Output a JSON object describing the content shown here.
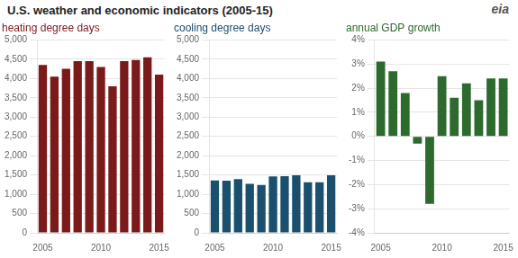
{
  "chart_data": [
    {
      "type": "bar",
      "title": "U.S. weather and economic indicators (2005-15)",
      "subtitle": "heating degree days",
      "categories": [
        "2005",
        null,
        null,
        null,
        null,
        "2010",
        null,
        null,
        null,
        null,
        "2015"
      ],
      "values": [
        4350,
        4050,
        4250,
        4450,
        4450,
        4300,
        3800,
        4450,
        4480,
        4550,
        4100
      ],
      "color": "#7B1A1A",
      "ylim": [
        0,
        5000
      ],
      "yticks": [
        0,
        500,
        {
          "value": 1000,
          "label": "1,000"
        },
        {
          "value": 1500,
          "label": "1,500"
        },
        {
          "value": 2000,
          "label": "2,000"
        },
        {
          "value": 2500,
          "label": "2,500"
        },
        {
          "value": 3000,
          "label": "3,000"
        },
        {
          "value": 3500,
          "label": "3,500"
        },
        {
          "value": 4000,
          "label": "4,000"
        },
        {
          "value": 4500,
          "label": "4,500"
        },
        {
          "value": 5000,
          "label": "5,000"
        }
      ],
      "grid": true
    },
    {
      "type": "bar",
      "subtitle": "cooling degree days",
      "categories": [
        "2005",
        null,
        null,
        null,
        null,
        "2010",
        null,
        null,
        null,
        null,
        "2015"
      ],
      "values": [
        1360,
        1350,
        1390,
        1270,
        1240,
        1460,
        1470,
        1490,
        1310,
        1310,
        1490
      ],
      "color": "#1A4F6E",
      "ylim": [
        0,
        5000
      ],
      "yticks": [
        0,
        500,
        {
          "value": 1000,
          "label": "1,000"
        },
        {
          "value": 1500,
          "label": "1,500"
        },
        {
          "value": 2000,
          "label": "2,000"
        },
        {
          "value": 2500,
          "label": "2,500"
        },
        {
          "value": 3000,
          "label": "3,000"
        },
        {
          "value": 3500,
          "label": "3,500"
        },
        {
          "value": 4000,
          "label": "4,000"
        },
        {
          "value": 4500,
          "label": "4,500"
        },
        {
          "value": 5000,
          "label": "5,000"
        }
      ],
      "grid": true
    },
    {
      "type": "bar",
      "subtitle": "annual GDP growth",
      "categories": [
        "2005",
        null,
        null,
        null,
        null,
        "2010",
        null,
        null,
        null,
        null,
        "2015"
      ],
      "values": [
        3.1,
        2.7,
        1.8,
        -0.3,
        -2.8,
        2.5,
        1.6,
        2.2,
        1.5,
        2.4,
        2.4
      ],
      "color": "#2D6A2D",
      "ylim": [
        -4,
        4
      ],
      "yticks": [
        {
          "value": -4,
          "label": "-4%"
        },
        {
          "value": -3,
          "label": "-3%"
        },
        {
          "value": -2,
          "label": "-2%"
        },
        {
          "value": -1,
          "label": "-1%"
        },
        {
          "value": 0,
          "label": "0%"
        },
        {
          "value": 1,
          "label": "1%"
        },
        {
          "value": 2,
          "label": "2%"
        },
        {
          "value": 3,
          "label": "3%"
        },
        {
          "value": 4,
          "label": "4%"
        }
      ],
      "grid": true,
      "annotations": [
        "eia"
      ]
    }
  ]
}
